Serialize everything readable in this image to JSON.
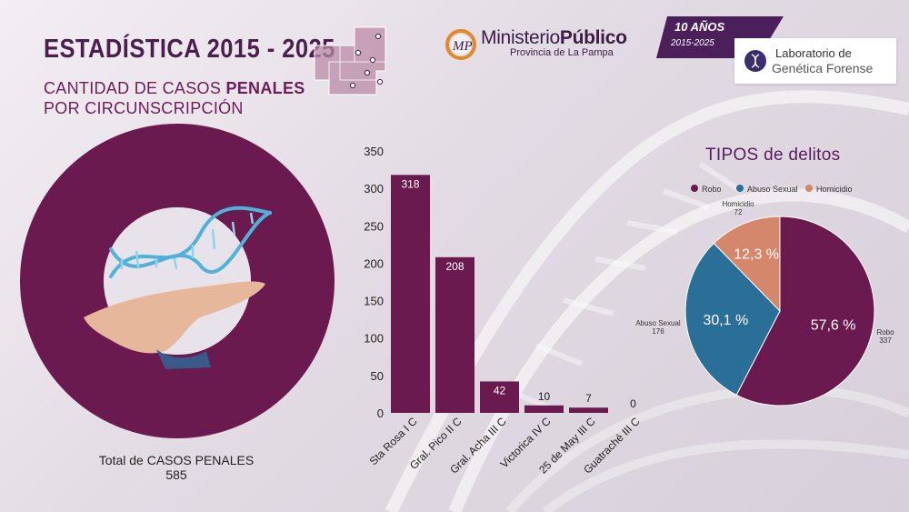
{
  "header": {
    "title": "ESTADÍSTICA 2015 - 2025",
    "subtitle_line1_pre": "CANTIDAD DE CASOS ",
    "subtitle_line1_bold": "PENALES",
    "subtitle_line2": "POR CIRCUNSCRIPCIÓN"
  },
  "logo": {
    "name_regular": "Ministerio",
    "name_bold": "Público",
    "sub": "Provincia de La Pampa"
  },
  "badge": {
    "years": "10 AÑOS",
    "range": "2015-2025"
  },
  "lab": {
    "line1": "Laboratorio de",
    "line2": "Genética Forense"
  },
  "colors": {
    "primary": "#6b1a4f",
    "blue": "#2a6f97",
    "orange": "#d4876a",
    "dark": "#4a1f4e"
  },
  "total": {
    "label": "Total de CASOS PENALES",
    "value": "585"
  },
  "chart_data": [
    {
      "type": "bar",
      "title": "Cantidad de casos penales por circunscripción",
      "categories": [
        "Sta Rosa I C",
        "Gral. Pico II C",
        "Gral. Acha III C",
        "Victorica IV C",
        "25 de May III C",
        "Guatraché III C"
      ],
      "values": [
        318,
        208,
        42,
        10,
        7,
        0
      ],
      "data_labels": [
        "318",
        "208",
        "42",
        "10",
        "7",
        "0"
      ],
      "yticks": [
        "0",
        "50",
        "100",
        "150",
        "200",
        "250",
        "300",
        "350"
      ],
      "ylim": [
        0,
        350
      ],
      "xlabel": "",
      "ylabel": "",
      "grid": false
    },
    {
      "type": "pie",
      "title": "TIPOS de delitos",
      "legend": [
        "Robo",
        "Abuso Sexual",
        "Homicidio"
      ],
      "legend_position": "top",
      "categories": [
        "Robo",
        "Abuso Sexual",
        "Homicidio"
      ],
      "values": [
        337,
        176,
        72
      ],
      "percent_labels": [
        "57,6 %",
        "30,1 %",
        "12,3 %"
      ],
      "value_labels": [
        "337",
        "176",
        "72"
      ]
    },
    {
      "type": "pie",
      "title": "Total de CASOS PENALES",
      "categories": [
        "Total"
      ],
      "values": [
        585
      ]
    }
  ]
}
